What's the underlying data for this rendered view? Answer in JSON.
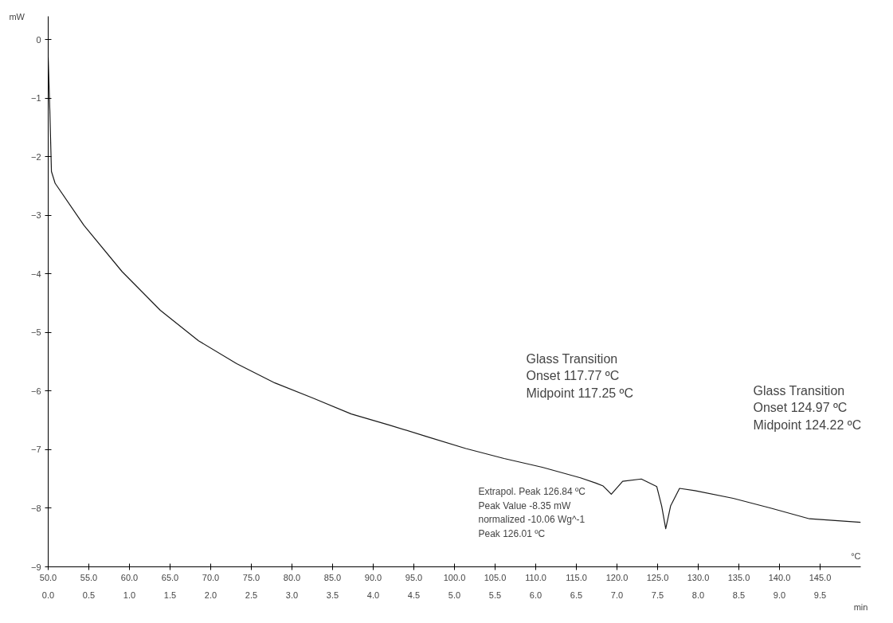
{
  "chart_data": {
    "type": "line",
    "xlabel": "°C",
    "x2label": "min",
    "ylabel": "mW",
    "x": [
      50.0,
      50.2,
      50.4,
      50.85,
      54.4,
      59.1,
      63.8,
      68.5,
      73.2,
      77.9,
      82.6,
      87.3,
      92.0,
      96.7,
      101.4,
      106.1,
      110.8,
      115.5,
      117.4,
      118.3,
      119.3,
      120.7,
      123.0,
      124.9,
      125.5,
      126.0,
      126.6,
      127.7,
      129.6,
      134.3,
      139.0,
      143.7,
      150.0
    ],
    "series": [
      {
        "color": "#1a1a1a",
        "values": [
          -0.3,
          -1.2,
          -2.25,
          -2.45,
          -3.17,
          -3.96,
          -4.62,
          -5.14,
          -5.53,
          -5.86,
          -6.12,
          -6.39,
          -6.58,
          -6.78,
          -6.98,
          -7.15,
          -7.3,
          -7.48,
          -7.57,
          -7.62,
          -7.76,
          -7.54,
          -7.5,
          -7.63,
          -7.96,
          -8.35,
          -7.96,
          -7.66,
          -7.7,
          -7.83,
          -8.0,
          -8.18,
          -8.24
        ]
      }
    ],
    "xlim": [
      50,
      150
    ],
    "ylim": [
      -9,
      0.4
    ],
    "xticks": [
      {
        "value": 50,
        "label": "50.0"
      },
      {
        "value": 55,
        "label": "55.0"
      },
      {
        "value": 60,
        "label": "60.0"
      },
      {
        "value": 65,
        "label": "65.0"
      },
      {
        "value": 70,
        "label": "70.0"
      },
      {
        "value": 75,
        "label": "75.0"
      },
      {
        "value": 80,
        "label": "80.0"
      },
      {
        "value": 85,
        "label": "85.0"
      },
      {
        "value": 90,
        "label": "90.0"
      },
      {
        "value": 95,
        "label": "95.0"
      },
      {
        "value": 100,
        "label": "100.0"
      },
      {
        "value": 105,
        "label": "105.0"
      },
      {
        "value": 110,
        "label": "110.0"
      },
      {
        "value": 115,
        "label": "115.0"
      },
      {
        "value": 120,
        "label": "120.0"
      },
      {
        "value": 125,
        "label": "125.0"
      },
      {
        "value": 130,
        "label": "130.0"
      },
      {
        "value": 135,
        "label": "135.0"
      },
      {
        "value": 140,
        "label": "140.0"
      },
      {
        "value": 145,
        "label": "145.0"
      }
    ],
    "x2lim": [
      0,
      10
    ],
    "x2ticks": [
      {
        "value": 0,
        "label": "0.0"
      },
      {
        "value": 0.5,
        "label": "0.5"
      },
      {
        "value": 1,
        "label": "1.0"
      },
      {
        "value": 1.5,
        "label": "1.5"
      },
      {
        "value": 2,
        "label": "2.0"
      },
      {
        "value": 2.5,
        "label": "2.5"
      },
      {
        "value": 3,
        "label": "3.0"
      },
      {
        "value": 3.5,
        "label": "3.5"
      },
      {
        "value": 4,
        "label": "4.0"
      },
      {
        "value": 4.5,
        "label": "4.5"
      },
      {
        "value": 5,
        "label": "5.0"
      },
      {
        "value": 5.5,
        "label": "5.5"
      },
      {
        "value": 6,
        "label": "6.0"
      },
      {
        "value": 6.5,
        "label": "6.5"
      },
      {
        "value": 7,
        "label": "7.0"
      },
      {
        "value": 7.5,
        "label": "7.5"
      },
      {
        "value": 8,
        "label": "8.0"
      },
      {
        "value": 8.5,
        "label": "8.5"
      },
      {
        "value": 9,
        "label": "9.0"
      },
      {
        "value": 9.5,
        "label": "9.5"
      }
    ],
    "yticks": [
      -9,
      -8,
      -7,
      -6,
      -5,
      -4,
      -3,
      -2,
      -1,
      0
    ],
    "grid": false,
    "marker": "none",
    "line_style": "solid",
    "annotations": [
      "Glass Transition\nOnset          117.77 ºC\nMidpoint    117.25 ºC",
      "Glass Transition\nOnset          124.97 ºC\nMidpoint    124.22 ºC",
      "Extrapol. Peak   126.84 ºC\nPeak Value        -8.35 mW\n   normalized     -10.06 Wg^-1\nPeak                 126.01 ºC"
    ]
  }
}
